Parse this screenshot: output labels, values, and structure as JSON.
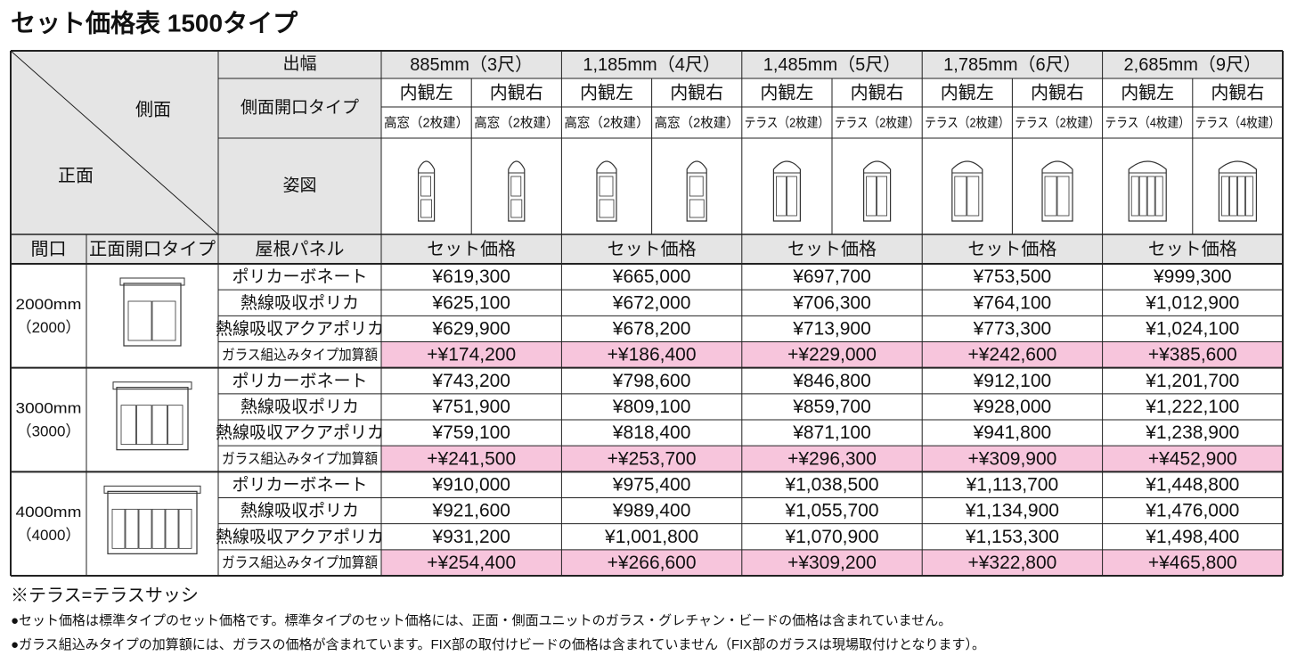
{
  "title": "セット価格表 1500タイプ",
  "corner": {
    "side": "側面",
    "front": "正面"
  },
  "header_labels": {
    "depth": "出幅",
    "side_type": "側面開口タイプ",
    "figure": "姿図"
  },
  "column_labels": {
    "frontage": "間口",
    "front_type": "正面開口タイプ",
    "roof": "屋根パネル",
    "price": "セット価格"
  },
  "widths": [
    {
      "label": "885mm（3尺）",
      "sides": [
        {
          "name": "内観左",
          "type": "高窓（2枚建）"
        },
        {
          "name": "内観右",
          "type": "高窓（2枚建）"
        }
      ]
    },
    {
      "label": "1,185mm（4尺）",
      "sides": [
        {
          "name": "内観左",
          "type": "高窓（2枚建）"
        },
        {
          "name": "内観右",
          "type": "高窓（2枚建）"
        }
      ]
    },
    {
      "label": "1,485mm（5尺）",
      "sides": [
        {
          "name": "内観左",
          "type": "テラス（2枚建）"
        },
        {
          "name": "内観右",
          "type": "テラス（2枚建）"
        }
      ]
    },
    {
      "label": "1,785mm（6尺）",
      "sides": [
        {
          "name": "内観左",
          "type": "テラス（2枚建）"
        },
        {
          "name": "内観右",
          "type": "テラス（2枚建）"
        }
      ]
    },
    {
      "label": "2,685mm（9尺）",
      "sides": [
        {
          "name": "内観左",
          "type": "テラス（4枚建）"
        },
        {
          "name": "内観右",
          "type": "テラス（4枚建）"
        }
      ]
    }
  ],
  "groups": [
    {
      "frontage": "2000mm",
      "frontage_sub": "（2000）",
      "rows": [
        {
          "roof": "ポリカーボネート",
          "prices": [
            "¥619,300",
            "¥665,000",
            "¥697,700",
            "¥753,500",
            "¥999,300"
          ]
        },
        {
          "roof": "熱線吸収ポリカ",
          "prices": [
            "¥625,100",
            "¥672,000",
            "¥706,300",
            "¥764,100",
            "¥1,012,900"
          ]
        },
        {
          "roof": "熱線吸収アクアポリカ",
          "prices": [
            "¥629,900",
            "¥678,200",
            "¥713,900",
            "¥773,300",
            "¥1,024,100"
          ]
        },
        {
          "roof": "ガラス組込みタイプ加算額",
          "prices": [
            "+¥174,200",
            "+¥186,400",
            "+¥229,000",
            "+¥242,600",
            "+¥385,600"
          ]
        }
      ]
    },
    {
      "frontage": "3000mm",
      "frontage_sub": "（3000）",
      "rows": [
        {
          "roof": "ポリカーボネート",
          "prices": [
            "¥743,200",
            "¥798,600",
            "¥846,800",
            "¥912,100",
            "¥1,201,700"
          ]
        },
        {
          "roof": "熱線吸収ポリカ",
          "prices": [
            "¥751,900",
            "¥809,100",
            "¥859,700",
            "¥928,000",
            "¥1,222,100"
          ]
        },
        {
          "roof": "熱線吸収アクアポリカ",
          "prices": [
            "¥759,100",
            "¥818,400",
            "¥871,100",
            "¥941,800",
            "¥1,238,900"
          ]
        },
        {
          "roof": "ガラス組込みタイプ加算額",
          "prices": [
            "+¥241,500",
            "+¥253,700",
            "+¥296,300",
            "+¥309,900",
            "+¥452,900"
          ]
        }
      ]
    },
    {
      "frontage": "4000mm",
      "frontage_sub": "（4000）",
      "rows": [
        {
          "roof": "ポリカーボネート",
          "prices": [
            "¥910,000",
            "¥975,400",
            "¥1,038,500",
            "¥1,113,700",
            "¥1,448,800"
          ]
        },
        {
          "roof": "熱線吸収ポリカ",
          "prices": [
            "¥921,600",
            "¥989,400",
            "¥1,055,700",
            "¥1,134,900",
            "¥1,476,000"
          ]
        },
        {
          "roof": "熱線吸収アクアポリカ",
          "prices": [
            "¥931,200",
            "¥1,001,800",
            "¥1,070,900",
            "¥1,153,300",
            "¥1,498,400"
          ]
        },
        {
          "roof": "ガラス組込みタイプ加算額",
          "prices": [
            "+¥254,400",
            "+¥266,600",
            "+¥309,200",
            "+¥322,800",
            "+¥465,800"
          ]
        }
      ]
    }
  ],
  "notes": [
    "※テラス=テラスサッシ",
    "●セット価格は標準タイプのセット価格です。標準タイプのセット価格には、正面・側面ユニットのガラス・グレチャン・ビードの価格は含まれていません。",
    "●ガラス組込みタイプの加算額には、ガラスの価格が含まれています。FIX部の取付けビードの価格は含まれていません（FIX部のガラスは現場取付けとなります）。"
  ]
}
